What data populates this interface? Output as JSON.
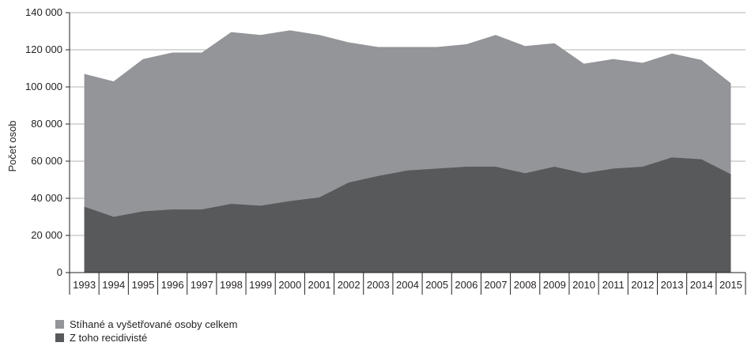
{
  "chart_data": {
    "type": "area",
    "title": "",
    "xlabel": "",
    "ylabel": "Počet osob",
    "ylim": [
      0,
      140000
    ],
    "yticks": [
      0,
      20000,
      40000,
      60000,
      80000,
      100000,
      120000,
      140000
    ],
    "ytick_labels": [
      "0",
      "20 000",
      "40 000",
      "60 000",
      "80 000",
      "100 000",
      "120 000",
      "140 000"
    ],
    "grid": true,
    "legend_position": "bottom-left",
    "categories": [
      "1993",
      "1994",
      "1995",
      "1996",
      "1997",
      "1998",
      "1999",
      "2000",
      "2001",
      "2002",
      "2003",
      "2004",
      "2005",
      "2006",
      "2007",
      "2008",
      "2009",
      "2010",
      "2011",
      "2012",
      "2013",
      "2014",
      "2015"
    ],
    "series": [
      {
        "name": "Stíhané a vyšetřované osoby celkem",
        "color": "#939598",
        "values": [
          107000,
          103000,
          115000,
          118500,
          118500,
          129500,
          128000,
          130500,
          128000,
          124000,
          121500,
          121500,
          121500,
          123000,
          128000,
          122000,
          123500,
          112500,
          115000,
          113000,
          118000,
          114500,
          102000
        ]
      },
      {
        "name": "Z toho recidivisté",
        "color": "#58595b",
        "values": [
          35500,
          30000,
          33000,
          34000,
          34000,
          37000,
          36000,
          38500,
          40500,
          48500,
          52000,
          55000,
          56000,
          57000,
          57000,
          53500,
          57000,
          53500,
          56000,
          57000,
          62000,
          61000,
          53000
        ]
      }
    ]
  }
}
